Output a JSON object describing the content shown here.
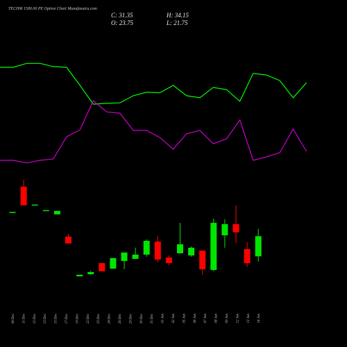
{
  "chart_data": {
    "type": "candlestick",
    "title": "TECHM 1580.00 PE Option Chart Munafasutra.com",
    "close_label": "C: 31.35",
    "high_label": "H: 34.15",
    "open_label": "O: 23.75",
    "low_label": "L: 21.75",
    "categories": [
      "08 Dec",
      "11 Dec",
      "12 Dec",
      "13 Dec",
      "15 Dec",
      "17 Dec",
      "19 Dec",
      "22 Dec",
      "23 Dec",
      "24 Dec",
      "26 Dec",
      "29 Dec",
      "30 Dec",
      "31 Dec",
      "01 Jan",
      "02 Jan",
      "05 Jan",
      "06 Jan",
      "07 Jan",
      "08 Jan",
      "09 Jan",
      "12 Jan",
      "13 Jan",
      "14 Jan"
    ],
    "open": [
      40.1,
      50.0,
      43.2,
      41.1,
      39.6,
      31.2,
      16.2,
      17.0,
      21.2,
      19.1,
      22.0,
      22.8,
      24.4,
      29.3,
      23.3,
      24.9,
      24.1,
      25.9,
      18.6,
      31.7,
      35.9,
      26.5,
      23.75,
      null
    ],
    "high": [
      40.5,
      52.7,
      43.3,
      41.2,
      40.9,
      32.2,
      16.8,
      18.3,
      21.2,
      23.1,
      25.2,
      27.0,
      30.1,
      31.4,
      24.1,
      36.4,
      27.5,
      25.9,
      38.0,
      37.7,
      43.0,
      29.1,
      34.15,
      null
    ],
    "low": [
      40.1,
      43.0,
      43.2,
      41.1,
      39.6,
      28.6,
      16.2,
      16.8,
      18.1,
      19.1,
      18.9,
      22.8,
      23.6,
      21.5,
      20.4,
      24.9,
      23.6,
      16.8,
      18.1,
      27.0,
      28.8,
      19.7,
      21.75,
      null
    ],
    "close": [
      40.5,
      43.0,
      43.3,
      41.2,
      40.9,
      28.6,
      16.8,
      17.8,
      18.1,
      23.1,
      25.2,
      24.4,
      29.6,
      22.5,
      21.2,
      28.3,
      27.0,
      18.9,
      36.4,
      35.9,
      32.8,
      21.2,
      31.35,
      null
    ],
    "up_color": "#00e600",
    "down_color": "#ff0000",
    "lines": [
      {
        "color": "#00ff00",
        "values": [
          95.1,
          95.1,
          96.6,
          96.6,
          95.4,
          95.1,
          88.3,
          81.2,
          81.5,
          81.7,
          84.4,
          85.7,
          85.5,
          88.3,
          84.4,
          83.6,
          87.5,
          86.7,
          82.3,
          92.8,
          92.2,
          90.1,
          83.6,
          89.3
        ]
      },
      {
        "color": "#cc00cc",
        "values": [
          60.0,
          60.0,
          59.0,
          60.0,
          60.5,
          68.9,
          71.5,
          82.5,
          78.3,
          77.8,
          71.3,
          71.3,
          68.6,
          64.2,
          70.0,
          71.3,
          66.3,
          68.1,
          75.2,
          60.0,
          61.3,
          62.9,
          71.8,
          63.4
        ]
      }
    ],
    "ylim": [
      0,
      120
    ]
  }
}
